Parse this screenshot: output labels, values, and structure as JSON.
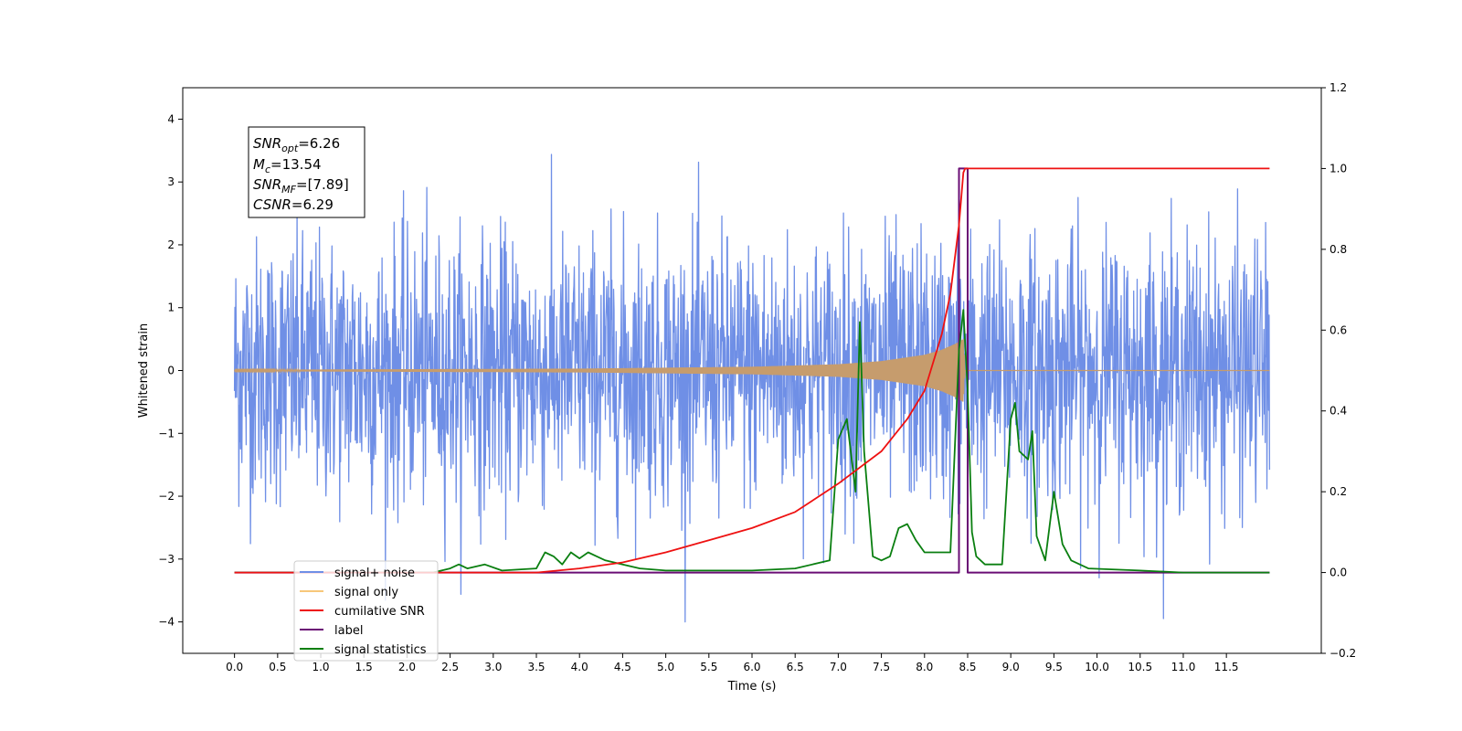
{
  "chart_data": {
    "type": "line",
    "title": "",
    "xlabel": "Time (s)",
    "ylabel_left": "Whitened strain",
    "ylabel_right": "",
    "xlim": [
      -0.6,
      12.6
    ],
    "ylim_left": [
      -4.5,
      4.5
    ],
    "ylim_right": [
      -0.2,
      1.2
    ],
    "x_ticks": [
      "0.0",
      "0.5",
      "1.0",
      "1.5",
      "2.0",
      "2.5",
      "3.0",
      "3.5",
      "4.0",
      "4.5",
      "5.0",
      "5.5",
      "6.0",
      "6.5",
      "7.0",
      "7.5",
      "8.0",
      "8.5",
      "9.0",
      "9.5",
      "10.0",
      "10.5",
      "11.0",
      "11.5"
    ],
    "y_left_ticks": [
      "4",
      "3",
      "2",
      "1",
      "0",
      "−1",
      "−2",
      "−3",
      "−4"
    ],
    "y_right_ticks": [
      "1.2",
      "1.0",
      "0.8",
      "0.6",
      "0.4",
      "0.2",
      "0.0",
      "−0.2"
    ],
    "grid": false,
    "annotation": {
      "lines": [
        {
          "main": "SNR",
          "sub": "opt",
          "rest": "=6.26"
        },
        {
          "main": "M",
          "sub": "c",
          "rest": "=13.54"
        },
        {
          "main": "SNR",
          "sub": "MF",
          "rest": "=[7.89]"
        },
        {
          "main": "CSNR",
          "sub": "",
          "rest": "=6.29"
        }
      ]
    },
    "legend": {
      "placement": "lower-left",
      "entries": [
        {
          "label": "signal+ noise",
          "color": "#6f8fe6"
        },
        {
          "label": "signal only",
          "color": "#f7c77a"
        },
        {
          "label": "cumilative SNR",
          "color": "#ee1111"
        },
        {
          "label": "label",
          "color": "#6a0d75"
        },
        {
          "label": "signal statistics",
          "color": "#0a7f10"
        }
      ]
    },
    "series": [
      {
        "name": "signal+ noise",
        "axis": "left",
        "color": "#6f8fe6",
        "sample_rate_hz": 200,
        "x_range": [
          0.0,
          12.0
        ],
        "amplitude_sigma": 1.0
      },
      {
        "name": "signal only",
        "axis": "left",
        "color": "#c69c6d",
        "envelope": {
          "x": [
            0.0,
            2.0,
            4.0,
            6.0,
            7.0,
            7.5,
            8.0,
            8.2,
            8.35,
            8.45,
            8.47,
            12.0
          ],
          "y": [
            0.01,
            0.02,
            0.03,
            0.06,
            0.1,
            0.15,
            0.25,
            0.33,
            0.42,
            0.5,
            0.0,
            0.0
          ]
        }
      },
      {
        "name": "cumilative SNR",
        "axis": "right",
        "color": "#ee1111",
        "x": [
          0.0,
          3.5,
          4.0,
          4.5,
          5.0,
          5.5,
          6.0,
          6.5,
          7.0,
          7.5,
          7.8,
          8.0,
          8.2,
          8.3,
          8.4,
          8.45,
          8.47,
          12.0
        ],
        "y": [
          0.0,
          0.0,
          0.01,
          0.025,
          0.05,
          0.08,
          0.11,
          0.15,
          0.22,
          0.3,
          0.38,
          0.45,
          0.59,
          0.69,
          0.86,
          0.99,
          1.0,
          1.0
        ]
      },
      {
        "name": "label",
        "axis": "right",
        "color": "#6a0d75",
        "x": [
          0.0,
          8.4,
          8.4,
          8.5,
          8.5,
          12.0
        ],
        "y": [
          0.0,
          0.0,
          1.0,
          1.0,
          0.0,
          0.0
        ]
      },
      {
        "name": "signal statistics",
        "axis": "right",
        "color": "#0a7f10",
        "x": [
          0.0,
          2.3,
          2.5,
          2.6,
          2.7,
          2.9,
          3.1,
          3.5,
          3.6,
          3.7,
          3.8,
          3.9,
          4.0,
          4.1,
          4.2,
          4.3,
          4.5,
          4.7,
          5.0,
          6.0,
          6.5,
          6.9,
          7.0,
          7.1,
          7.2,
          7.25,
          7.3,
          7.4,
          7.5,
          7.6,
          7.7,
          7.8,
          7.9,
          8.0,
          8.2,
          8.3,
          8.4,
          8.45,
          8.5,
          8.55,
          8.6,
          8.7,
          8.9,
          9.0,
          9.05,
          9.1,
          9.2,
          9.25,
          9.3,
          9.4,
          9.5,
          9.6,
          9.7,
          9.9,
          10.5,
          11.0,
          11.5,
          12.0
        ],
        "y": [
          0.0,
          0.0,
          0.01,
          0.02,
          0.01,
          0.02,
          0.005,
          0.01,
          0.05,
          0.04,
          0.02,
          0.05,
          0.035,
          0.05,
          0.04,
          0.03,
          0.02,
          0.01,
          0.005,
          0.005,
          0.01,
          0.03,
          0.33,
          0.38,
          0.2,
          0.62,
          0.3,
          0.04,
          0.03,
          0.04,
          0.11,
          0.12,
          0.08,
          0.05,
          0.05,
          0.05,
          0.55,
          0.65,
          0.45,
          0.1,
          0.04,
          0.02,
          0.02,
          0.38,
          0.42,
          0.3,
          0.28,
          0.35,
          0.09,
          0.03,
          0.2,
          0.07,
          0.03,
          0.01,
          0.005,
          0.0,
          0.0,
          0.0
        ]
      }
    ]
  }
}
